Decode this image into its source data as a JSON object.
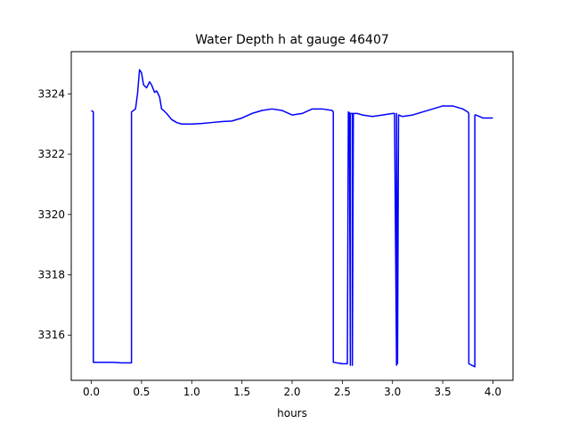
{
  "chart_data": {
    "type": "line",
    "title": "Water Depth h at gauge 46407",
    "xlabel": "hours",
    "ylabel": "",
    "xlim": [
      -0.2,
      4.2
    ],
    "ylim": [
      3314.5,
      3325.4
    ],
    "xticks": [
      0.0,
      0.5,
      1.0,
      1.5,
      2.0,
      2.5,
      3.0,
      3.5,
      4.0
    ],
    "xtick_labels": [
      "0.0",
      "0.5",
      "1.0",
      "1.5",
      "2.0",
      "2.5",
      "3.0",
      "3.5",
      "4.0"
    ],
    "yticks": [
      3316,
      3318,
      3320,
      3322,
      3324
    ],
    "ytick_labels": [
      "3316",
      "3318",
      "3320",
      "3322",
      "3324"
    ],
    "grid": false,
    "series": [
      {
        "name": "",
        "color": "#0000ff",
        "x": [
          0.0,
          0.02,
          0.02,
          0.1,
          0.2,
          0.3,
          0.4,
          0.4,
          0.44,
          0.46,
          0.48,
          0.5,
          0.52,
          0.55,
          0.58,
          0.6,
          0.63,
          0.65,
          0.68,
          0.7,
          0.72,
          0.75,
          0.8,
          0.85,
          0.9,
          0.95,
          1.0,
          1.1,
          1.2,
          1.3,
          1.4,
          1.5,
          1.6,
          1.7,
          1.8,
          1.9,
          2.0,
          2.1,
          2.2,
          2.3,
          2.4,
          2.41,
          2.41,
          2.5,
          2.55,
          2.56,
          2.57,
          2.58,
          2.58,
          2.6,
          2.6,
          2.61,
          2.65,
          2.7,
          2.8,
          2.9,
          3.0,
          3.02,
          3.04,
          3.04,
          3.05,
          3.06,
          3.06,
          3.1,
          3.2,
          3.3,
          3.4,
          3.5,
          3.6,
          3.7,
          3.75,
          3.76,
          3.76,
          3.82,
          3.82,
          3.83,
          3.9,
          4.0
        ],
        "y": [
          3323.45,
          3323.4,
          3315.1,
          3315.1,
          3315.1,
          3315.08,
          3315.08,
          3323.4,
          3323.5,
          3324.0,
          3324.8,
          3324.7,
          3324.3,
          3324.2,
          3324.4,
          3324.3,
          3324.05,
          3324.1,
          3323.9,
          3323.5,
          3323.45,
          3323.35,
          3323.15,
          3323.05,
          3323.0,
          3323.0,
          3323.0,
          3323.02,
          3323.05,
          3323.08,
          3323.1,
          3323.2,
          3323.35,
          3323.45,
          3323.5,
          3323.45,
          3323.3,
          3323.35,
          3323.5,
          3323.5,
          3323.45,
          3323.4,
          3315.1,
          3315.05,
          3315.05,
          3323.4,
          3323.38,
          3315.0,
          3323.35,
          3323.35,
          3315.0,
          3323.35,
          3323.35,
          3323.3,
          3323.25,
          3323.3,
          3323.35,
          3323.35,
          3315.0,
          3323.35,
          3315.05,
          3323.3,
          3323.3,
          3323.25,
          3323.3,
          3323.4,
          3323.5,
          3323.6,
          3323.6,
          3323.5,
          3323.4,
          3323.35,
          3315.05,
          3314.95,
          3323.3,
          3323.3,
          3323.2,
          3323.2
        ]
      }
    ]
  }
}
